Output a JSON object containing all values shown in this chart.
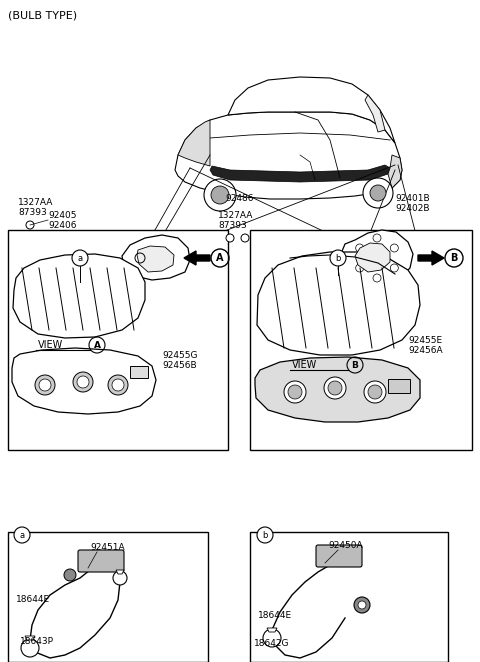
{
  "bg_color": "#ffffff",
  "line_color": "#000000",
  "labels": {
    "bulb_type": "(BULB TYPE)",
    "left_top_1": "1327AA",
    "left_top_2": "87393",
    "left_top_3": "92405",
    "left_top_4": "92406",
    "center_top_1": "92486",
    "center_top_2": "1327AA",
    "center_top_3": "87393",
    "right_top_1": "92401B",
    "right_top_2": "92402B",
    "left_inner_1": "92455G",
    "left_inner_2": "92456B",
    "right_inner_1": "92455E",
    "right_inner_2": "92456A",
    "box_a_part": "92451A",
    "box_a_wire1": "18644E",
    "box_a_wire2": "18643P",
    "box_b_part": "92450A",
    "box_b_wire1": "18644E",
    "box_b_wire2": "18642G"
  }
}
